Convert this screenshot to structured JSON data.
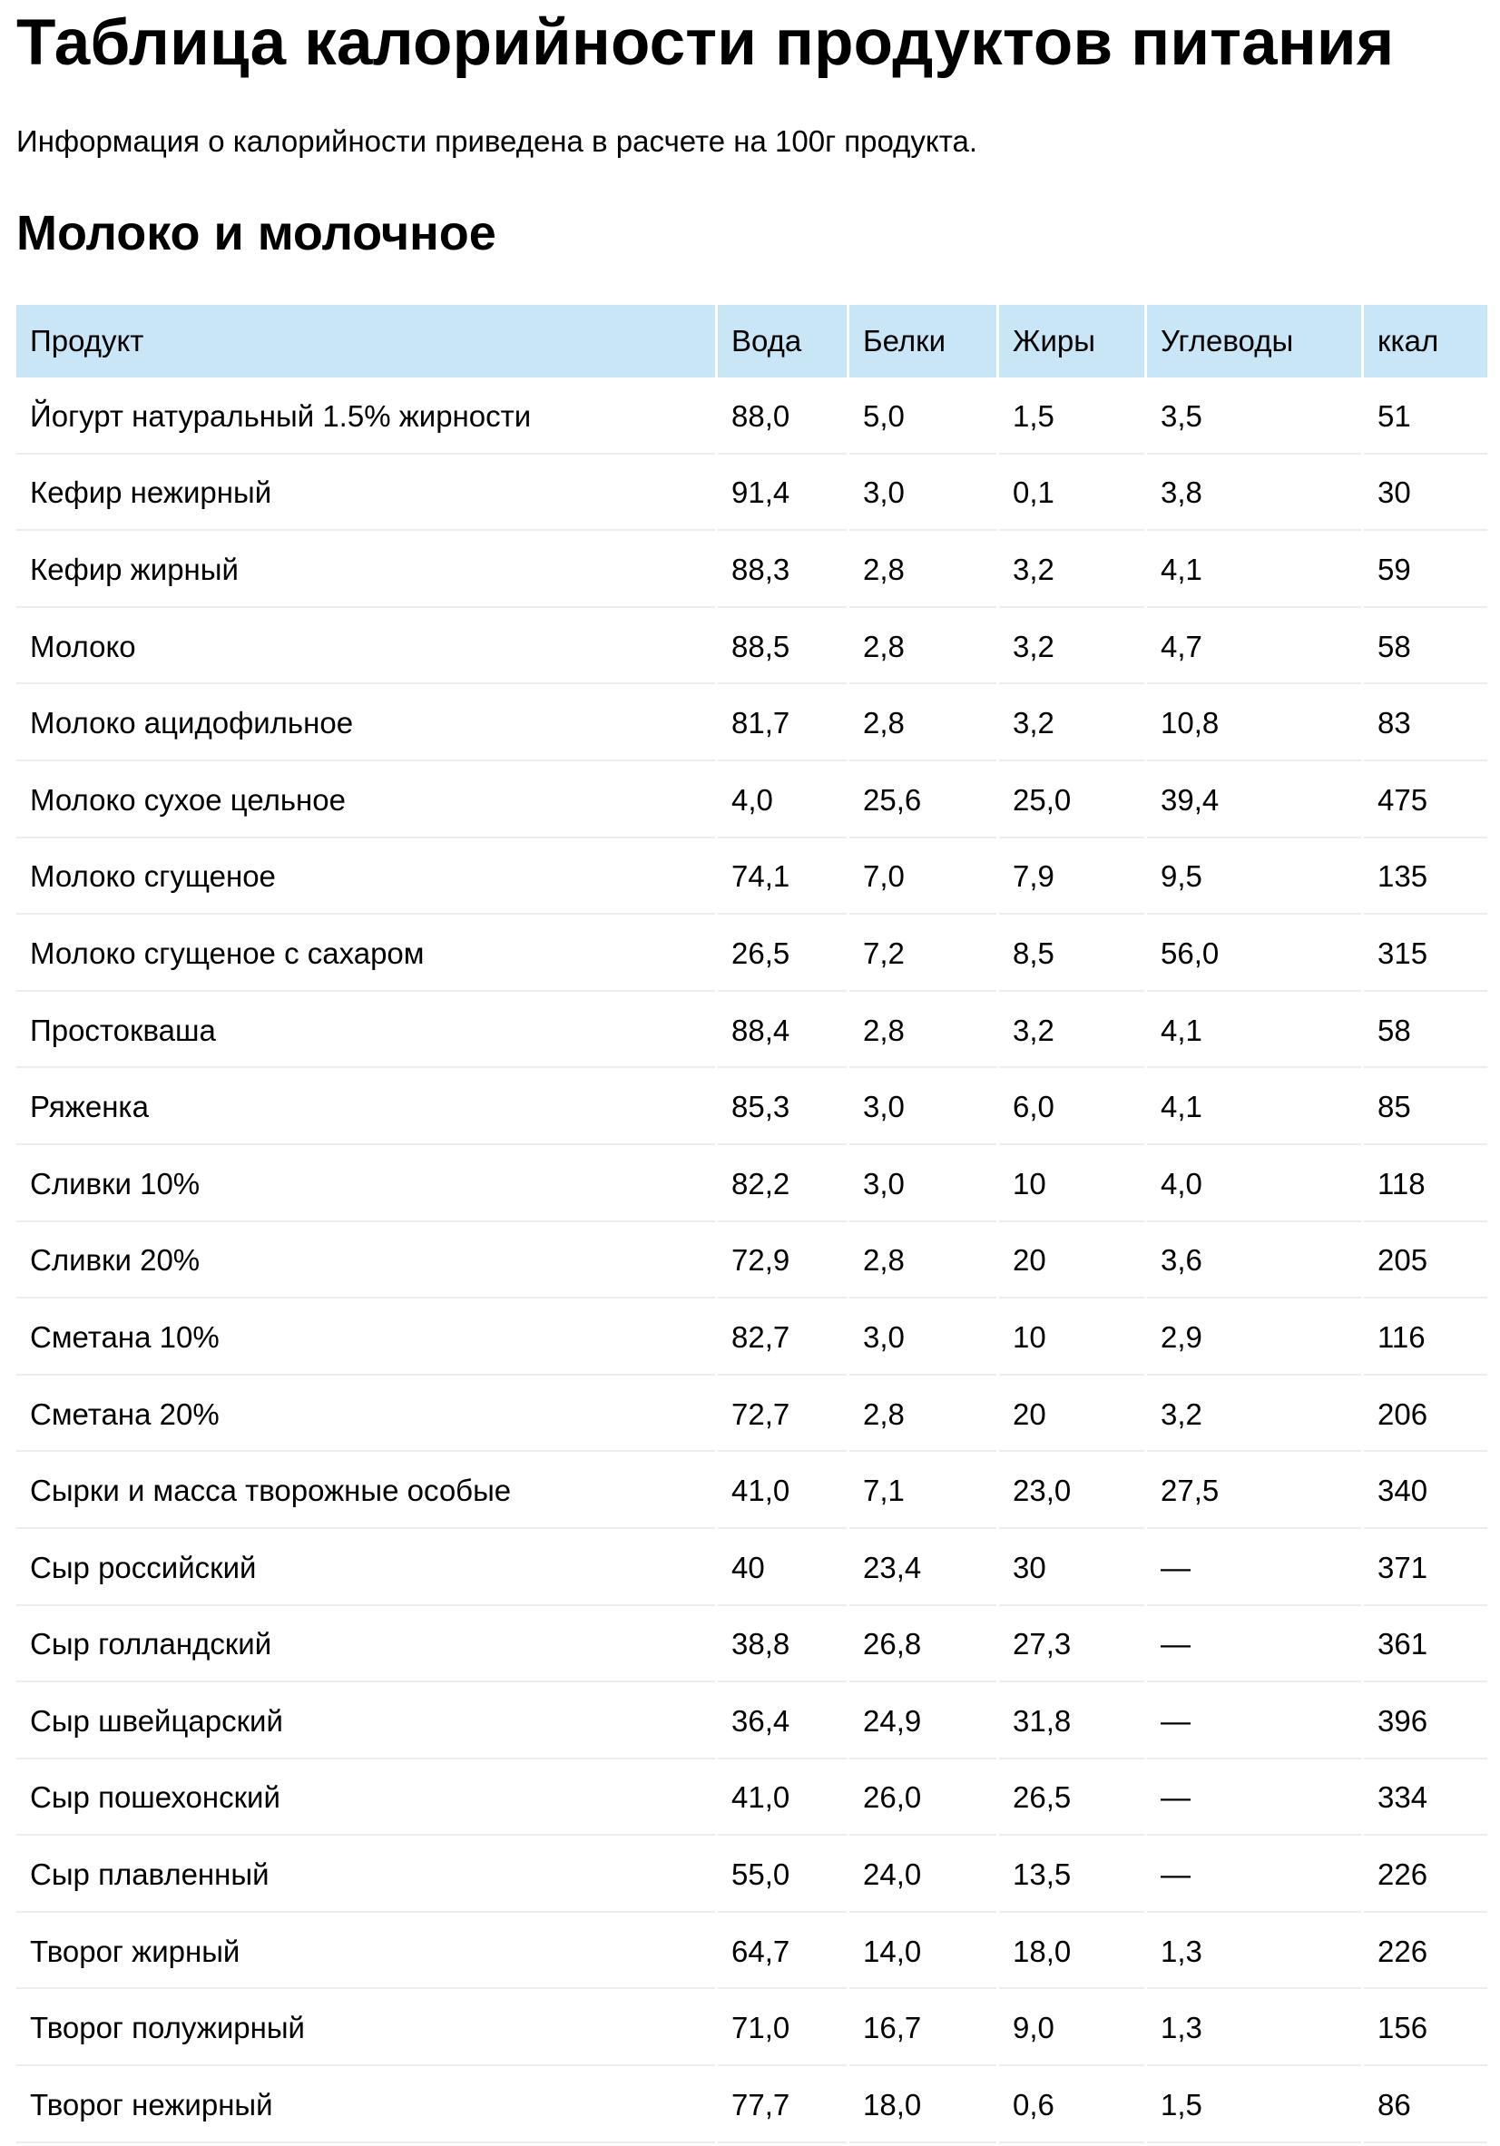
{
  "page": {
    "title": "Таблица калорийности продуктов питания",
    "intro": "Информация о калорийности приведена в расчете на 100г продукта.",
    "section_title": "Молоко и молочное"
  },
  "table": {
    "header_bg": "#c8e6f6",
    "columns": [
      "Продукт",
      "Вода",
      "Белки",
      "Жиры",
      "Углеводы",
      "ккал"
    ],
    "rows": [
      [
        "Йогурт натуральный 1.5% жирности",
        "88,0",
        "5,0",
        "1,5",
        "3,5",
        "51"
      ],
      [
        "Кефир нежирный",
        "91,4",
        "3,0",
        "0,1",
        "3,8",
        "30"
      ],
      [
        "Кефир жирный",
        "88,3",
        "2,8",
        "3,2",
        "4,1",
        "59"
      ],
      [
        "Молоко",
        "88,5",
        "2,8",
        "3,2",
        "4,7",
        "58"
      ],
      [
        "Молоко ацидофильное",
        "81,7",
        "2,8",
        "3,2",
        "10,8",
        "83"
      ],
      [
        "Молоко сухое цельное",
        "4,0",
        "25,6",
        "25,0",
        "39,4",
        "475"
      ],
      [
        "Молоко сгущеное",
        "74,1",
        "7,0",
        "7,9",
        "9,5",
        "135"
      ],
      [
        "Молоко сгущеное с сахаром",
        "26,5",
        "7,2",
        "8,5",
        "56,0",
        "315"
      ],
      [
        "Простокваша",
        "88,4",
        "2,8",
        "3,2",
        "4,1",
        "58"
      ],
      [
        "Ряженка",
        "85,3",
        "3,0",
        "6,0",
        "4,1",
        "85"
      ],
      [
        "Сливки 10%",
        "82,2",
        "3,0",
        "10",
        "4,0",
        "118"
      ],
      [
        "Сливки 20%",
        "72,9",
        "2,8",
        "20",
        "3,6",
        "205"
      ],
      [
        "Сметана 10%",
        "82,7",
        "3,0",
        "10",
        "2,9",
        "116"
      ],
      [
        "Сметана 20%",
        "72,7",
        "2,8",
        "20",
        "3,2",
        "206"
      ],
      [
        "Сырки и масса творожные особые",
        "41,0",
        "7,1",
        "23,0",
        "27,5",
        "340"
      ],
      [
        "Сыр российский",
        "40",
        "23,4",
        "30",
        "—",
        "371"
      ],
      [
        "Сыр голландский",
        "38,8",
        "26,8",
        "27,3",
        "—",
        "361"
      ],
      [
        "Сыр швейцарский",
        "36,4",
        "24,9",
        "31,8",
        "—",
        "396"
      ],
      [
        "Сыр пошехонский",
        "41,0",
        "26,0",
        "26,5",
        "—",
        "334"
      ],
      [
        "Сыр плавленный",
        "55,0",
        "24,0",
        "13,5",
        "—",
        "226"
      ],
      [
        "Творог жирный",
        "64,7",
        "14,0",
        "18,0",
        "1,3",
        "226"
      ],
      [
        "Творог полужирный",
        "71,0",
        "16,7",
        "9,0",
        "1,3",
        "156"
      ],
      [
        "Творог нежирный",
        "77,7",
        "18,0",
        "0,6",
        "1,5",
        "86"
      ]
    ]
  }
}
